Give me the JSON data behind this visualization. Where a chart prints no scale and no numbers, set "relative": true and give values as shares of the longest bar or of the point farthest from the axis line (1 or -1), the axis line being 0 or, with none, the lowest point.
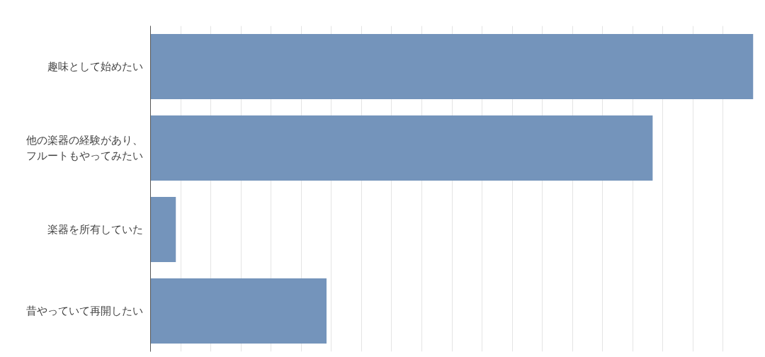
{
  "chart_data": {
    "type": "bar",
    "orientation": "horizontal",
    "relative": true,
    "grid": "x",
    "color": "#7494bb",
    "categories": [
      "趣味として始めたい",
      "他の楽器の経験があり、フルートもやってみたい",
      "楽器を所有していた",
      "昔やっていて再開したい"
    ],
    "values": [
      1,
      0.833,
      0.042,
      0.292
    ]
  }
}
